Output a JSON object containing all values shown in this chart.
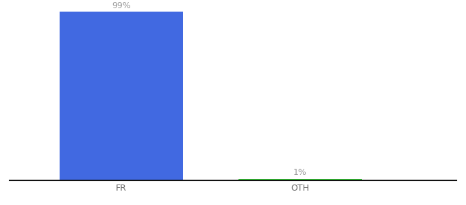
{
  "categories": [
    "FR",
    "OTH"
  ],
  "values": [
    99,
    1
  ],
  "bar_colors": [
    "#4169e1",
    "#33cc33"
  ],
  "value_labels": [
    "99%",
    "1%"
  ],
  "ylim": [
    0,
    102
  ],
  "background_color": "#ffffff",
  "label_color": "#999999",
  "label_fontsize": 9,
  "tick_fontsize": 9,
  "bar_width": 0.55,
  "xlim": [
    -0.2,
    1.8
  ]
}
